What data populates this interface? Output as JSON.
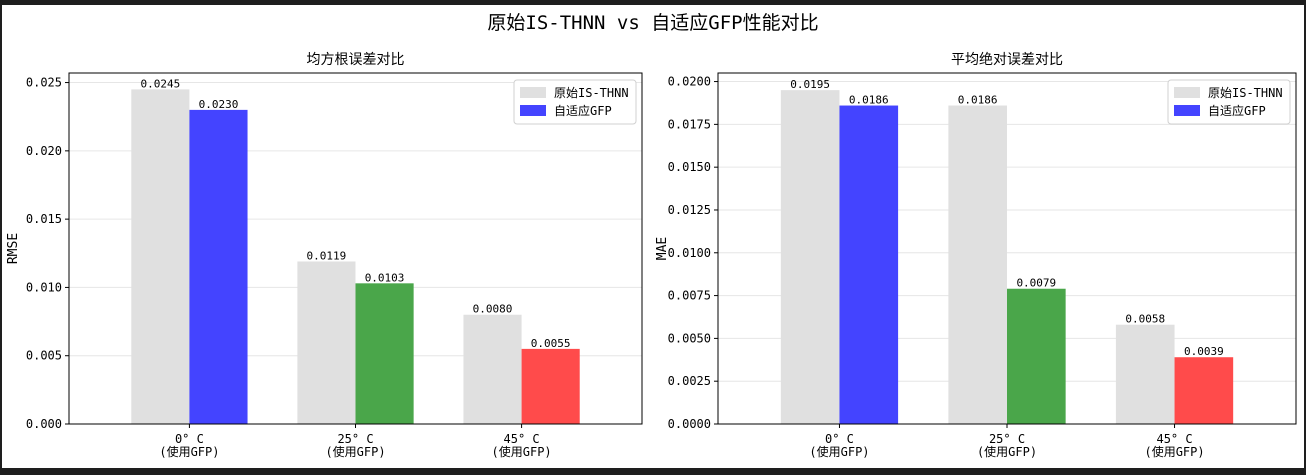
{
  "figure_title": "原始IS-THNN vs 自适应GFP性能对比",
  "colors": {
    "original": "#e0e0e0",
    "adaptive": [
      "#4444ff",
      "#4aa64a",
      "#ff4b4b"
    ]
  },
  "chart_data": [
    {
      "type": "bar",
      "title": "均方根误差对比",
      "xlabel": "",
      "ylabel": "RMSE",
      "categories": [
        "0° C\n(使用GFP)",
        "25° C\n(使用GFP)",
        "45° C\n(使用GFP)"
      ],
      "series": [
        {
          "name": "原始IS-THNN",
          "values": [
            0.0245,
            0.0119,
            0.008
          ],
          "labels": [
            "0.0245",
            "0.0119",
            "0.0080"
          ]
        },
        {
          "name": "自适应GFP",
          "values": [
            0.023,
            0.0103,
            0.0055
          ],
          "labels": [
            "0.0230",
            "0.0103",
            "0.0055"
          ]
        }
      ],
      "ylim": [
        0,
        0.0257
      ],
      "yticks": [
        0,
        0.005,
        0.01,
        0.015,
        0.02,
        0.025
      ],
      "ytick_labels": [
        "0.000",
        "0.005",
        "0.010",
        "0.015",
        "0.020",
        "0.025"
      ],
      "grid": "horizontal",
      "legend": "top-right"
    },
    {
      "type": "bar",
      "title": "平均绝对误差对比",
      "xlabel": "",
      "ylabel": "MAE",
      "categories": [
        "0° C\n(使用GFP)",
        "25° C\n(使用GFP)",
        "45° C\n(使用GFP)"
      ],
      "series": [
        {
          "name": "原始IS-THNN",
          "values": [
            0.0195,
            0.0186,
            0.0058
          ],
          "labels": [
            "0.0195",
            "0.0186",
            "0.0058"
          ]
        },
        {
          "name": "自适应GFP",
          "values": [
            0.0186,
            0.0079,
            0.0039
          ],
          "labels": [
            "0.0186",
            "0.0079",
            "0.0039"
          ]
        }
      ],
      "ylim": [
        0,
        0.0205
      ],
      "yticks": [
        0,
        0.0025,
        0.005,
        0.0075,
        0.01,
        0.0125,
        0.015,
        0.0175,
        0.02
      ],
      "ytick_labels": [
        "0.0000",
        "0.0025",
        "0.0050",
        "0.0075",
        "0.0100",
        "0.0125",
        "0.0150",
        "0.0175",
        "0.0200"
      ],
      "grid": "horizontal",
      "legend": "top-right"
    }
  ]
}
